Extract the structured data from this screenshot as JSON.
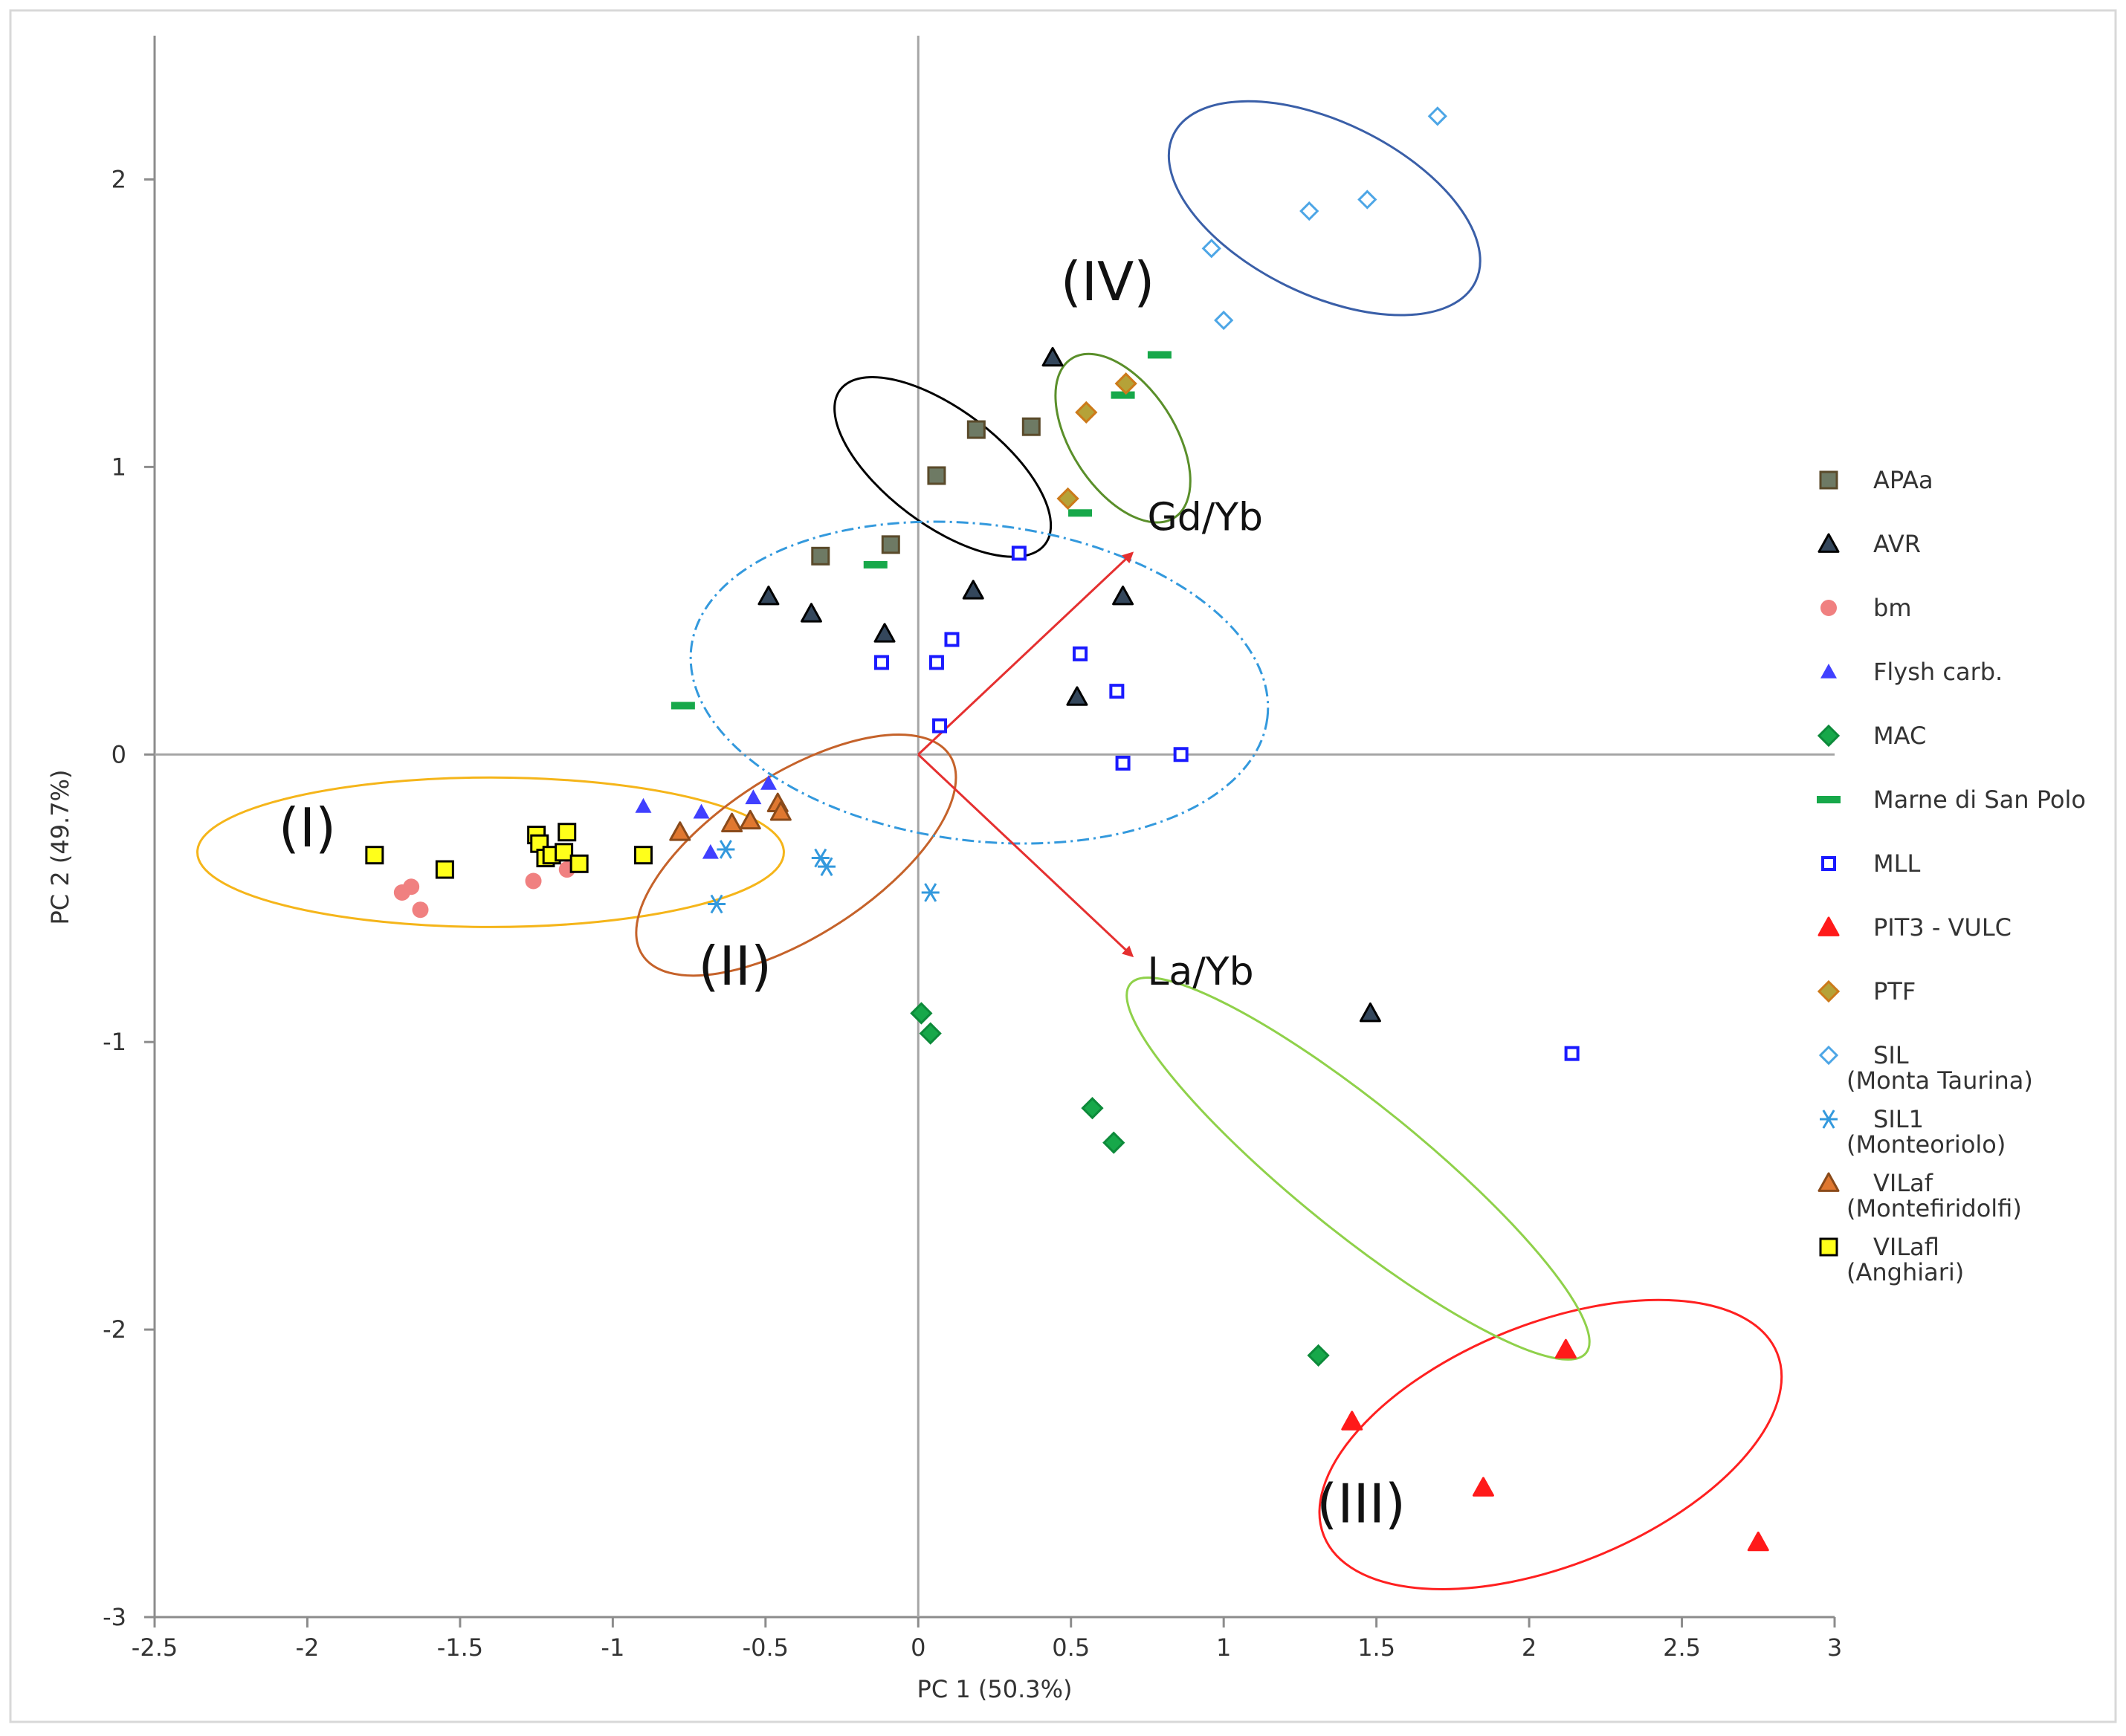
{
  "chart_data": {
    "type": "scatter",
    "title": "",
    "xlabel": "PC 1 (50.3%)",
    "ylabel": "PC 2 (49.7%)",
    "xlim": [
      -2.5,
      3
    ],
    "ylim": [
      -3,
      2.5
    ],
    "x_ticks": [
      -2.5,
      -2,
      -1.5,
      -1,
      -0.5,
      0,
      0.5,
      1,
      1.5,
      2,
      2.5,
      3
    ],
    "x_tick_labels": [
      "-2.5",
      "-2",
      "-1.5",
      "-1",
      "-0.5",
      "0",
      "0.5",
      "1",
      "1.5",
      "2",
      "2.5",
      "3"
    ],
    "y_ticks": [
      -3,
      -2,
      -1,
      0,
      1,
      2
    ],
    "y_tick_labels": [
      "-3",
      "-2",
      "-1",
      "0",
      "1",
      "2"
    ],
    "grid": false,
    "legend_position": "right",
    "series": [
      {
        "name": "APAa",
        "label_lines": [
          "APAa"
        ],
        "marker": "square",
        "fill": "#6e7a64",
        "stroke": "#5a4a2a",
        "points": [
          [
            -0.32,
            0.69
          ],
          [
            -0.09,
            0.73
          ],
          [
            0.06,
            0.97
          ],
          [
            0.19,
            1.13
          ],
          [
            0.37,
            1.14
          ]
        ]
      },
      {
        "name": "AVR",
        "label_lines": [
          "AVR"
        ],
        "marker": "triangle",
        "fill": "#34475c",
        "stroke": "#000000",
        "points": [
          [
            -0.49,
            0.55
          ],
          [
            -0.35,
            0.49
          ],
          [
            -0.11,
            0.42
          ],
          [
            0.18,
            0.57
          ],
          [
            0.44,
            1.38
          ],
          [
            0.52,
            0.2
          ],
          [
            0.67,
            0.55
          ],
          [
            1.48,
            -0.9
          ]
        ]
      },
      {
        "name": "bm",
        "label_lines": [
          "bm"
        ],
        "marker": "circle",
        "fill": "#f08080",
        "stroke": "none",
        "points": [
          [
            -1.69,
            -0.48
          ],
          [
            -1.66,
            -0.46
          ],
          [
            -1.63,
            -0.54
          ],
          [
            -1.26,
            -0.44
          ],
          [
            -1.15,
            -0.4
          ]
        ]
      },
      {
        "name": "Flysh carb.",
        "label_lines": [
          "Flysh carb."
        ],
        "marker": "small-triangle",
        "fill": "#4040ff",
        "stroke": "none",
        "points": [
          [
            -0.9,
            -0.18
          ],
          [
            -0.71,
            -0.2
          ],
          [
            -0.68,
            -0.34
          ],
          [
            -0.54,
            -0.15
          ],
          [
            -0.49,
            -0.1
          ]
        ]
      },
      {
        "name": "MAC",
        "label_lines": [
          "MAC"
        ],
        "marker": "diamond",
        "fill": "#17a84a",
        "stroke": "#0d8a3a",
        "points": [
          [
            0.01,
            -0.9
          ],
          [
            0.04,
            -0.97
          ],
          [
            0.57,
            -1.23
          ],
          [
            0.64,
            -1.35
          ],
          [
            1.31,
            -2.09
          ]
        ]
      },
      {
        "name": "Marne di San Polo",
        "label_lines": [
          "Marne di San Polo"
        ],
        "marker": "dash",
        "fill": "#17a84a",
        "stroke": "none",
        "points": [
          [
            -0.77,
            0.17
          ],
          [
            -0.14,
            0.66
          ],
          [
            0.53,
            0.84
          ],
          [
            0.67,
            1.25
          ],
          [
            0.79,
            1.39
          ]
        ]
      },
      {
        "name": "MLL",
        "label_lines": [
          "MLL"
        ],
        "marker": "open-square",
        "fill": "#ffffff",
        "stroke": "#1a1aff",
        "points": [
          [
            -0.12,
            0.32
          ],
          [
            0.06,
            0.32
          ],
          [
            0.07,
            0.1
          ],
          [
            0.11,
            0.4
          ],
          [
            0.33,
            0.7
          ],
          [
            0.53,
            0.35
          ],
          [
            0.65,
            0.22
          ],
          [
            0.67,
            -0.03
          ],
          [
            0.86,
            0.0
          ],
          [
            2.14,
            -1.04
          ]
        ]
      },
      {
        "name": "PIT3 - VULC",
        "label_lines": [
          "PIT3 - VULC"
        ],
        "marker": "triangle",
        "fill": "#ff1a1a",
        "stroke": "#ff1a1a",
        "points": [
          [
            1.42,
            -2.32
          ],
          [
            1.85,
            -2.55
          ],
          [
            2.12,
            -2.07
          ],
          [
            2.75,
            -2.74
          ]
        ]
      },
      {
        "name": "PTF",
        "label_lines": [
          "PTF"
        ],
        "marker": "diamond",
        "fill": "#b5a238",
        "stroke": "#cc7a1a",
        "points": [
          [
            0.49,
            0.89
          ],
          [
            0.55,
            1.19
          ],
          [
            0.68,
            1.29
          ]
        ]
      },
      {
        "name": "SIL (Monta Taurina)",
        "label_lines": [
          "SIL",
          "(Monta Taurina)"
        ],
        "marker": "open-diamond",
        "fill": "#ffffff",
        "stroke": "#4da6e6",
        "points": [
          [
            0.96,
            1.76
          ],
          [
            1.0,
            1.51
          ],
          [
            1.28,
            1.89
          ],
          [
            1.47,
            1.93
          ],
          [
            1.7,
            2.22
          ]
        ]
      },
      {
        "name": "SIL1 (Monteoriolo)",
        "label_lines": [
          "SIL1",
          "(Monteoriolo)"
        ],
        "marker": "star",
        "fill": "none",
        "stroke": "#3399dd",
        "points": [
          [
            -0.66,
            -0.52
          ],
          [
            -0.63,
            -0.33
          ],
          [
            -0.32,
            -0.36
          ],
          [
            -0.3,
            -0.39
          ],
          [
            0.04,
            -0.48
          ]
        ]
      },
      {
        "name": "VILaf (Montefiridolfi)",
        "label_lines": [
          "VILaf",
          "(Montefiridolfi)"
        ],
        "marker": "triangle",
        "fill": "#e07830",
        "stroke": "#8a4a1a",
        "points": [
          [
            -0.78,
            -0.27
          ],
          [
            -0.61,
            -0.24
          ],
          [
            -0.55,
            -0.23
          ],
          [
            -0.46,
            -0.17
          ],
          [
            -0.45,
            -0.2
          ]
        ]
      },
      {
        "name": "VILafl (Anghiari)",
        "label_lines": [
          "VILafl",
          "(Anghiari)"
        ],
        "marker": "square",
        "fill": "#ffff1a",
        "stroke": "#000000",
        "points": [
          [
            -1.78,
            -0.35
          ],
          [
            -1.55,
            -0.4
          ],
          [
            -1.25,
            -0.28
          ],
          [
            -1.24,
            -0.31
          ],
          [
            -1.22,
            -0.36
          ],
          [
            -1.2,
            -0.35
          ],
          [
            -1.16,
            -0.34
          ],
          [
            -1.15,
            -0.27
          ],
          [
            -1.11,
            -0.38
          ],
          [
            -0.9,
            -0.35
          ]
        ]
      }
    ],
    "vectors": [
      {
        "label": "Gd/Yb",
        "to": [
          0.7,
          0.7
        ],
        "color": "#e53030",
        "label_at": [
          0.75,
          0.78
        ]
      },
      {
        "label": "La/Yb",
        "to": [
          0.7,
          -0.7
        ],
        "color": "#e53030",
        "label_at": [
          0.75,
          -0.8
        ]
      }
    ],
    "groups": [
      {
        "label": "(I)",
        "center": [
          -1.4,
          -0.34
        ],
        "rx": 0.96,
        "ry": 0.26,
        "angle": 0,
        "color": "#f5b51a",
        "dashed": false,
        "label_at": [
          -2.0,
          -0.32
        ]
      },
      {
        "label": "(II)",
        "center": [
          -0.4,
          -0.35
        ],
        "rx": 0.6,
        "ry": 0.28,
        "angle": -33,
        "color": "#c5622a",
        "dashed": false,
        "label_at": [
          -0.6,
          -0.8
        ]
      },
      {
        "label": "(III)",
        "center": [
          2.07,
          -2.4
        ],
        "rx": 0.8,
        "ry": 0.42,
        "angle": -22,
        "color": "#ff2020",
        "dashed": false,
        "label_at": [
          1.45,
          -2.67
        ]
      },
      {
        "label": "(IV)",
        "center": [
          0.67,
          1.1
        ],
        "rx": 0.31,
        "ry": 0.18,
        "angle": 57,
        "color": "#5a8f2a",
        "dashed": false,
        "label_at": [
          0.62,
          1.58
        ]
      },
      {
        "label": "",
        "center": [
          0.08,
          1.0
        ],
        "rx": 0.42,
        "ry": 0.2,
        "angle": 37,
        "color": "#000000",
        "dashed": false
      },
      {
        "label": "",
        "center": [
          1.33,
          1.9
        ],
        "rx": 0.55,
        "ry": 0.3,
        "angle": 26,
        "color": "#3a5fa8",
        "dashed": false
      },
      {
        "label": "",
        "center": [
          1.44,
          -1.44
        ],
        "rx": 0.96,
        "ry": 0.22,
        "angle": 39,
        "color": "#8fd14a",
        "dashed": false
      },
      {
        "label": "",
        "center": [
          0.2,
          0.25
        ],
        "rx": 0.95,
        "ry": 0.55,
        "angle": 7,
        "color": "#3399dd",
        "dashed": true
      }
    ]
  }
}
